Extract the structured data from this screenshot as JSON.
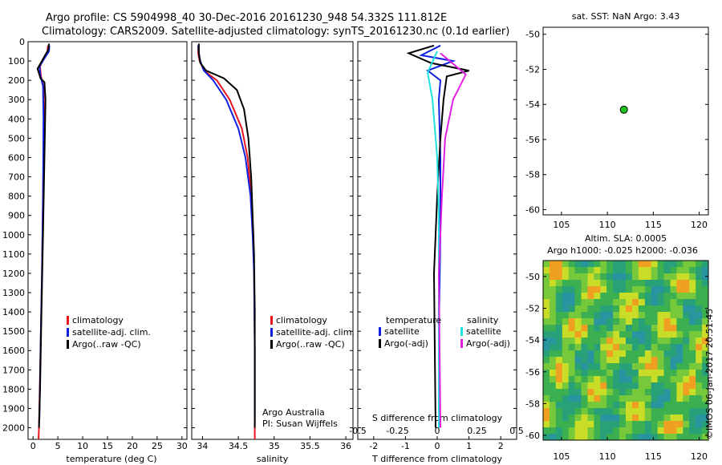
{
  "header": {
    "line1": "Argo profile: CS 5904998_40 30-Dec-2016 20161230_948 54.332S 111.812E",
    "line2": "Climatology: CARS2009. Satellite-adjusted climatology: synTS_20161230.nc (0.1d earlier)"
  },
  "side_text": "©IMOS 06-Jan-2017 20:51:45",
  "colors": {
    "climatology": "#e8141c",
    "satellite": "#1020e0",
    "argo": "#000000",
    "sal_satellite": "#20e0e0",
    "sal_argo": "#e020e0",
    "marker": "#20c020"
  },
  "chart_data": [
    {
      "id": "temperature",
      "type": "line",
      "xlabel": "temperature (deg C)",
      "ylabel": "",
      "xlim": [
        -1,
        31
      ],
      "ylim": [
        2060,
        0
      ],
      "xticks": [
        0,
        5,
        10,
        15,
        20,
        25,
        30
      ],
      "yticks": [
        0,
        100,
        200,
        300,
        400,
        500,
        600,
        700,
        800,
        900,
        1000,
        1100,
        1200,
        1300,
        1400,
        1500,
        1600,
        1700,
        1800,
        1900,
        2000
      ],
      "legend": [
        "climatology",
        "satellite-adj. clim.",
        "Argo(..raw -QC)"
      ],
      "series": [
        {
          "name": "climatology",
          "points": [
            [
              3.0,
              20
            ],
            [
              2.9,
              50
            ],
            [
              2.0,
              90
            ],
            [
              1.4,
              130
            ],
            [
              1.6,
              180
            ],
            [
              2.1,
              230
            ],
            [
              2.2,
              400
            ],
            [
              2.0,
              800
            ],
            [
              1.8,
              1200
            ],
            [
              1.5,
              1600
            ],
            [
              1.2,
              2000
            ],
            [
              1.1,
              2060
            ]
          ]
        },
        {
          "name": "satellite-adj. clim.",
          "points": [
            [
              3.3,
              20
            ],
            [
              3.2,
              50
            ],
            [
              2.2,
              90
            ],
            [
              1.3,
              130
            ],
            [
              1.5,
              180
            ],
            [
              2.0,
              230
            ],
            [
              2.1,
              400
            ],
            [
              2.0,
              800
            ],
            [
              1.8,
              1200
            ],
            [
              1.5,
              1600
            ],
            [
              1.3,
              1950
            ]
          ]
        },
        {
          "name": "Argo(..raw -QC)",
          "points": [
            [
              3.2,
              10
            ],
            [
              3.1,
              40
            ],
            [
              2.0,
              90
            ],
            [
              0.9,
              140
            ],
            [
              1.5,
              190
            ],
            [
              2.3,
              210
            ],
            [
              2.5,
              300
            ],
            [
              2.3,
              600
            ],
            [
              2.0,
              1000
            ],
            [
              1.7,
              1400
            ],
            [
              1.4,
              1800
            ],
            [
              1.2,
              2000
            ]
          ]
        }
      ]
    },
    {
      "id": "salinity",
      "type": "line",
      "xlabel": "salinity",
      "xlim": [
        33.85,
        36.1
      ],
      "ylim": [
        2060,
        0
      ],
      "xticks": [
        34,
        34.5,
        35,
        35.5,
        36
      ],
      "legend": [
        "climatology",
        "satellite-adj. clim.",
        "Argo(..raw -QC)"
      ],
      "annotation": [
        "Argo Australia",
        "PI: Susan Wijffels"
      ],
      "series": [
        {
          "name": "climatology",
          "points": [
            [
              33.94,
              20
            ],
            [
              33.94,
              60
            ],
            [
              33.96,
              100
            ],
            [
              34.02,
              150
            ],
            [
              34.2,
              200
            ],
            [
              34.38,
              300
            ],
            [
              34.55,
              450
            ],
            [
              34.63,
              600
            ],
            [
              34.68,
              800
            ],
            [
              34.71,
              1000
            ],
            [
              34.72,
              1200
            ],
            [
              34.73,
              1600
            ],
            [
              34.73,
              2000
            ],
            [
              34.73,
              2060
            ]
          ]
        },
        {
          "name": "satellite-adj. clim.",
          "points": [
            [
              33.94,
              20
            ],
            [
              33.95,
              60
            ],
            [
              33.97,
              100
            ],
            [
              34.02,
              150
            ],
            [
              34.15,
              200
            ],
            [
              34.33,
              300
            ],
            [
              34.5,
              450
            ],
            [
              34.6,
              600
            ],
            [
              34.67,
              800
            ],
            [
              34.7,
              1000
            ],
            [
              34.72,
              1200
            ],
            [
              34.73,
              1600
            ],
            [
              34.73,
              1950
            ]
          ]
        },
        {
          "name": "Argo(..raw -QC)",
          "points": [
            [
              33.95,
              10
            ],
            [
              33.95,
              60
            ],
            [
              33.97,
              110
            ],
            [
              34.05,
              150
            ],
            [
              34.3,
              190
            ],
            [
              34.48,
              250
            ],
            [
              34.58,
              350
            ],
            [
              34.64,
              500
            ],
            [
              34.68,
              700
            ],
            [
              34.7,
              900
            ],
            [
              34.72,
              1100
            ],
            [
              34.73,
              1400
            ],
            [
              34.73,
              2000
            ]
          ]
        }
      ]
    },
    {
      "id": "difference",
      "type": "line",
      "xlabel": "T difference from climatology",
      "xlabel_top": "S difference from climatology",
      "xlim": [
        -2.5,
        2.5
      ],
      "ylim": [
        2060,
        0
      ],
      "xticks": [
        -2,
        -1,
        0,
        1,
        2
      ],
      "xticks_s": [
        "-0.5",
        "-0.25",
        "0",
        "0.25",
        "0.5"
      ],
      "legend_t_title": "temperature",
      "legend_s_title": "salinity",
      "legend": [
        "satellite",
        "Argo(-adj)",
        "satellite",
        "Argo(-adj)"
      ],
      "series": [
        {
          "name": "satellite",
          "kind": "T",
          "points": [
            [
              0.1,
              20
            ],
            [
              -0.5,
              70
            ],
            [
              0.5,
              100
            ],
            [
              -0.3,
              150
            ],
            [
              0.1,
              200
            ],
            [
              0.05,
              300
            ],
            [
              0.1,
              600
            ],
            [
              0.1,
              1000
            ],
            [
              0.05,
              1500
            ],
            [
              0.05,
              2000
            ]
          ]
        },
        {
          "name": "Argo(-adj)",
          "kind": "T",
          "points": [
            [
              -0.1,
              20
            ],
            [
              -0.9,
              60
            ],
            [
              -0.2,
              110
            ],
            [
              1.0,
              150
            ],
            [
              0.3,
              180
            ],
            [
              0.2,
              300
            ],
            [
              0.1,
              500
            ],
            [
              0.0,
              800
            ],
            [
              -0.1,
              1200
            ],
            [
              -0.05,
              2000
            ]
          ]
        },
        {
          "name": "satellite",
          "kind": "S",
          "points": [
            [
              0.0,
              50
            ],
            [
              -0.3,
              160
            ],
            [
              -0.15,
              300
            ],
            [
              0.0,
              600
            ],
            [
              0.05,
              900
            ],
            [
              0.05,
              1200
            ],
            [
              0.05,
              2000
            ]
          ]
        },
        {
          "name": "Argo(-adj)",
          "kind": "S",
          "points": [
            [
              0.1,
              60
            ],
            [
              0.9,
              170
            ],
            [
              0.5,
              300
            ],
            [
              0.25,
              500
            ],
            [
              0.15,
              800
            ],
            [
              0.05,
              1200
            ],
            [
              0.1,
              2000
            ]
          ]
        }
      ]
    },
    {
      "id": "map",
      "type": "scatter",
      "title": "sat. SST: NaN Argo: 3.43",
      "xlim": [
        103,
        121
      ],
      "ylim": [
        -60.3,
        -49.6
      ],
      "xticks": [
        105,
        110,
        115,
        120
      ],
      "yticks": [
        -50,
        -52,
        -54,
        -56,
        -58,
        -60
      ],
      "points": [
        [
          111.8,
          -54.3
        ]
      ]
    },
    {
      "id": "sla",
      "type": "heatmap",
      "title_lines": [
        "Altim. SLA: 0.0005",
        "Argo h1000: -0.025 h2000: -0.036"
      ],
      "xlim": [
        103,
        121
      ],
      "ylim": [
        -60.3,
        -49.0
      ],
      "xticks": [
        105,
        110,
        115,
        120
      ],
      "yticks": [
        -50,
        -52,
        -54,
        -56,
        -58,
        -60
      ]
    }
  ]
}
